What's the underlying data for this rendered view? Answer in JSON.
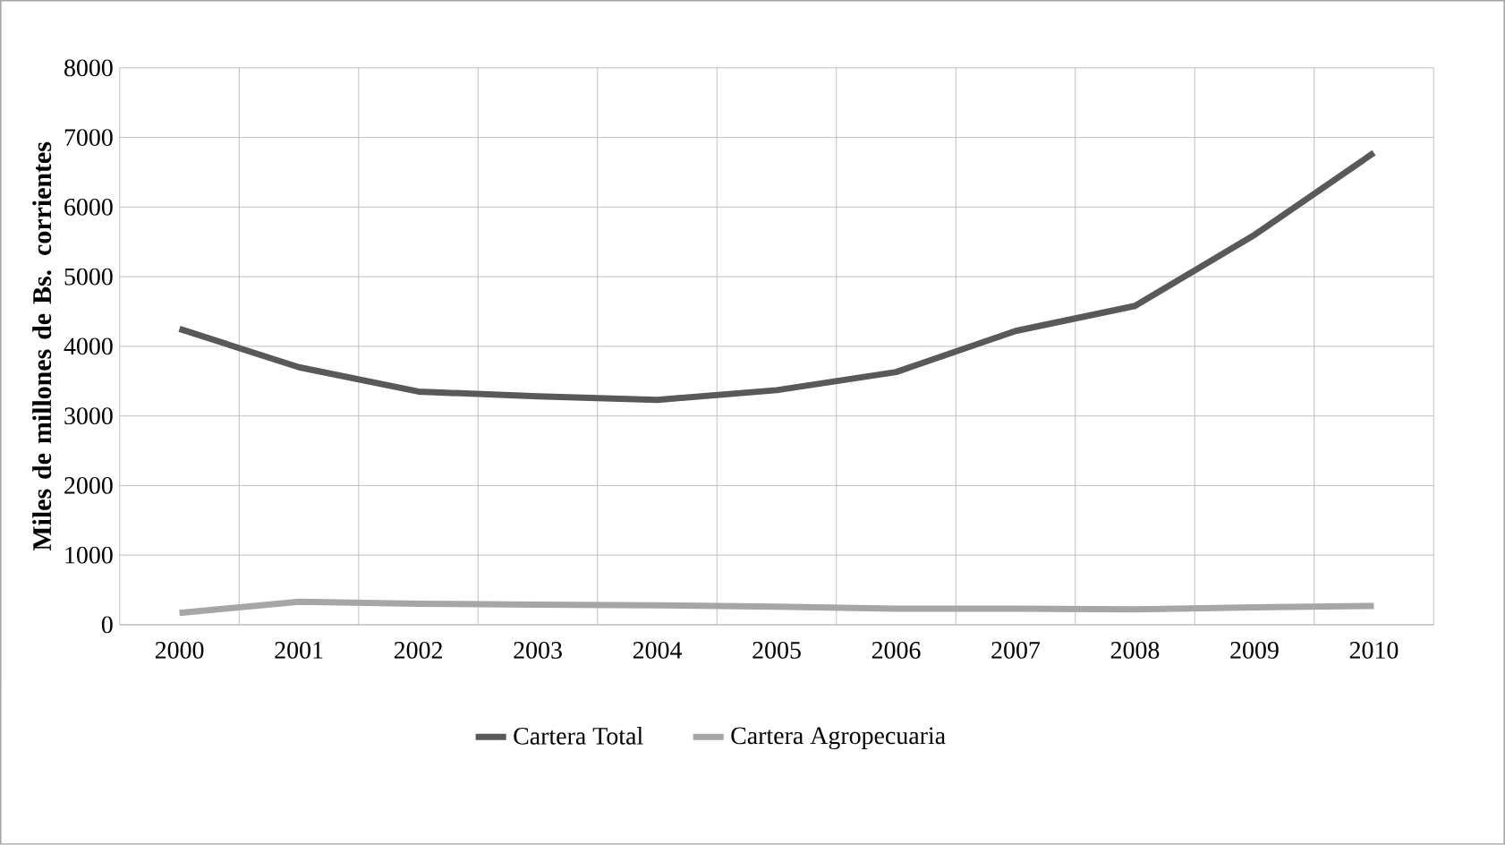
{
  "chart_data": {
    "type": "line",
    "ylabel": "Miles de millones de Bs. corrientes",
    "categories": [
      "2000",
      "2001",
      "2002",
      "2003",
      "2004",
      "2005",
      "2006",
      "2007",
      "2008",
      "2009",
      "2010"
    ],
    "series": [
      {
        "name": "Cartera Total",
        "color": "#595959",
        "values": [
          4250,
          3700,
          3350,
          3280,
          3230,
          3370,
          3630,
          4220,
          4580,
          5600,
          6780
        ]
      },
      {
        "name": "Cartera Agropecuaria",
        "color": "#a6a6a6",
        "values": [
          170,
          330,
          300,
          290,
          280,
          260,
          230,
          230,
          220,
          250,
          270
        ]
      }
    ],
    "ylim": [
      0,
      8000
    ],
    "yticks": [
      0,
      1000,
      2000,
      3000,
      4000,
      5000,
      6000,
      7000,
      8000
    ],
    "grid": true,
    "legend": "bottom",
    "marker": "none",
    "line_style": "solid"
  }
}
